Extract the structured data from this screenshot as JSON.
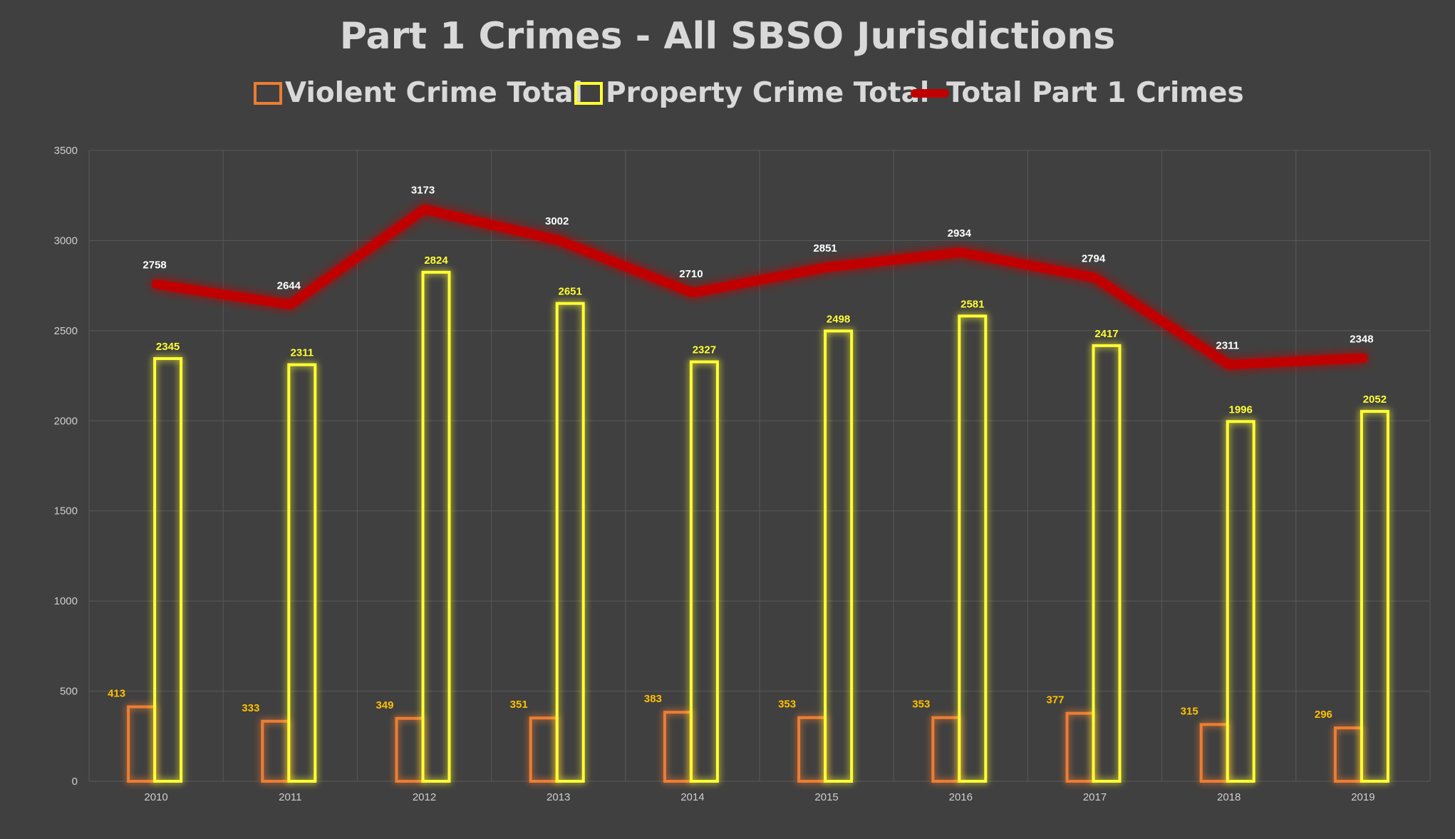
{
  "chart_data": {
    "type": "bar",
    "title": "Part 1 Crimes - All SBSO Jurisdictions",
    "categories": [
      "2010",
      "2011",
      "2012",
      "2013",
      "2014",
      "2015",
      "2016",
      "2017",
      "2018",
      "2019"
    ],
    "series": [
      {
        "name": "Violent Crime Total",
        "kind": "bar",
        "color": "#ed7d31",
        "values": [
          413,
          333,
          349,
          351,
          383,
          353,
          353,
          377,
          315,
          296
        ]
      },
      {
        "name": "Property Crime Total",
        "kind": "bar",
        "color": "#ffff33",
        "values": [
          2345,
          2311,
          2824,
          2651,
          2327,
          2498,
          2581,
          2417,
          1996,
          2052
        ]
      },
      {
        "name": "Total Part 1 Crimes",
        "kind": "line",
        "color": "#c00000",
        "values": [
          2758,
          2644,
          3173,
          3002,
          2710,
          2851,
          2934,
          2794,
          2311,
          2348
        ]
      }
    ],
    "yticks": [
      "0",
      "500",
      "1000",
      "1500",
      "2000",
      "2500",
      "3000",
      "3500"
    ],
    "ylim": [
      0,
      3500
    ],
    "grid": true,
    "legend_position": "top"
  },
  "colors": {
    "background": "#404040",
    "grid": "#595959",
    "text": "#d9d9d9",
    "line_label": "#ffffff"
  }
}
